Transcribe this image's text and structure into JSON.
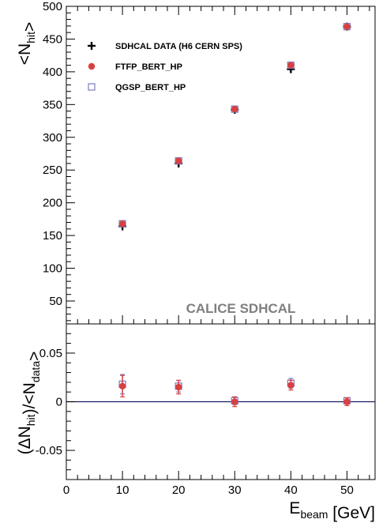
{
  "chart_data": [
    {
      "panel": "top",
      "type": "scatter",
      "xlabel": "E_beam [GeV]",
      "ylabel": "<N_hit>",
      "xlim": [
        0,
        55
      ],
      "ylim": [
        15,
        500
      ],
      "x_ticks": [
        0,
        10,
        20,
        30,
        40,
        50
      ],
      "y_ticks": [
        50,
        100,
        150,
        200,
        250,
        300,
        350,
        400,
        450,
        500
      ],
      "annotation": "CALICE SDHCAL",
      "legend_position": "top-left",
      "series": [
        {
          "name": "SDHCAL DATA (H6 CERN SPS)",
          "marker": "cross",
          "color": "#000000",
          "x": [
            10,
            20,
            30,
            40,
            50
          ],
          "y": [
            164,
            260,
            342,
            404,
            469
          ]
        },
        {
          "name": "FTFP_BERT_HP",
          "marker": "filled-circle",
          "color": "#d94040",
          "x": [
            10,
            20,
            30,
            40,
            50
          ],
          "y": [
            168,
            264,
            343,
            410,
            469
          ]
        },
        {
          "name": "QGSP_BERT_HP",
          "marker": "open-square",
          "color": "#7b7bc0",
          "x": [
            10,
            20,
            30,
            40,
            50
          ],
          "y": [
            168,
            264,
            343,
            410,
            469
          ]
        }
      ]
    },
    {
      "panel": "bottom",
      "type": "scatter",
      "xlabel": "E_beam [GeV]",
      "ylabel": "(ΔN_hit)/<N_data>",
      "xlim": [
        0,
        55
      ],
      "ylim": [
        -0.08,
        0.08
      ],
      "x_ticks": [
        0,
        10,
        20,
        30,
        40,
        50
      ],
      "y_ticks": [
        -0.05,
        0,
        0.05
      ],
      "reference_line": 0,
      "series": [
        {
          "name": "FTFP_BERT_HP",
          "marker": "filled-circle",
          "color": "#d94040",
          "x": [
            10,
            20,
            30,
            40,
            50
          ],
          "y": [
            0.016,
            0.015,
            0.0,
            0.017,
            0.0
          ],
          "yerr": [
            0.011,
            0.007,
            0.005,
            0.005,
            0.004
          ]
        },
        {
          "name": "QGSP_BERT_HP",
          "marker": "open-square",
          "color": "#7b7bc0",
          "x": [
            10,
            20,
            30,
            40,
            50
          ],
          "y": [
            0.018,
            0.016,
            0.001,
            0.019,
            0.001
          ],
          "yerr": [
            0.01,
            0.006,
            0.004,
            0.005,
            0.003
          ]
        }
      ]
    }
  ]
}
